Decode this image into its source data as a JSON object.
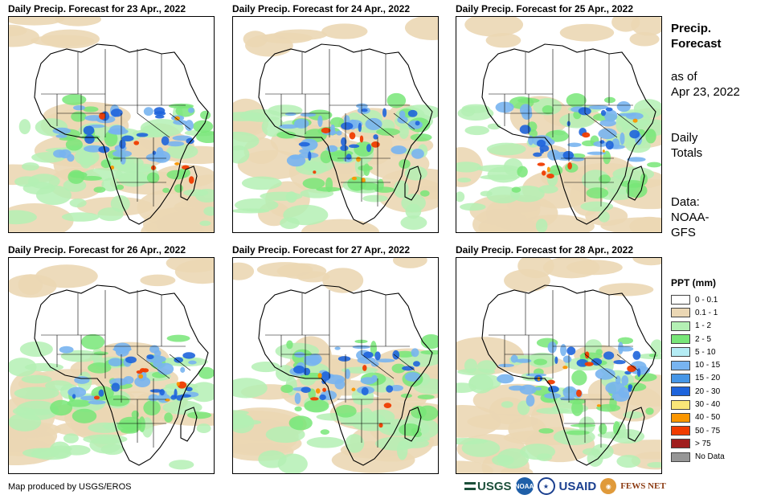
{
  "panels": [
    {
      "title": "Daily Precip. Forecast for 23 Apr., 2022"
    },
    {
      "title": "Daily Precip. Forecast for 24 Apr., 2022"
    },
    {
      "title": "Daily Precip. Forecast for 25 Apr., 2022"
    },
    {
      "title": "Daily Precip. Forecast for 26 Apr., 2022"
    },
    {
      "title": "Daily Precip. Forecast for 27 Apr., 2022"
    },
    {
      "title": "Daily Precip. Forecast for 28 Apr., 2022"
    }
  ],
  "side": {
    "title_line1": "Precip.",
    "title_line2": "Forecast",
    "asof_line1": "as of",
    "asof_line2": "Apr 23, 2022",
    "totals_line1": "Daily",
    "totals_line2": "Totals",
    "data_line1": "Data:",
    "data_line2": "NOAA-",
    "data_line3": "GFS"
  },
  "legend": {
    "title": "PPT (mm)",
    "items": [
      {
        "label": "0 - 0.1",
        "color": "#ffffff"
      },
      {
        "label": "0.1 - 1",
        "color": "#ebd7b4"
      },
      {
        "label": "1 - 2",
        "color": "#b4f0b4"
      },
      {
        "label": "2 - 5",
        "color": "#78e678"
      },
      {
        "label": "5 - 10",
        "color": "#b4ecf4"
      },
      {
        "label": "10 - 15",
        "color": "#78b4f0"
      },
      {
        "label": "15 - 20",
        "color": "#4696e6"
      },
      {
        "label": "20 - 30",
        "color": "#1e64dc"
      },
      {
        "label": "30 - 40",
        "color": "#fae678"
      },
      {
        "label": "40 - 50",
        "color": "#fa9600"
      },
      {
        "label": "50 - 75",
        "color": "#f03c00"
      },
      {
        "label": "> 75",
        "color": "#a01e1e"
      },
      {
        "label": "No Data",
        "color": "#969696"
      }
    ]
  },
  "footer": {
    "credit": "Map produced by USGS/EROS",
    "logo_usgs": "USGS",
    "logo_noaa": "NOAA",
    "logo_usaid": "USAID",
    "logo_fews": "FEWS NET"
  }
}
